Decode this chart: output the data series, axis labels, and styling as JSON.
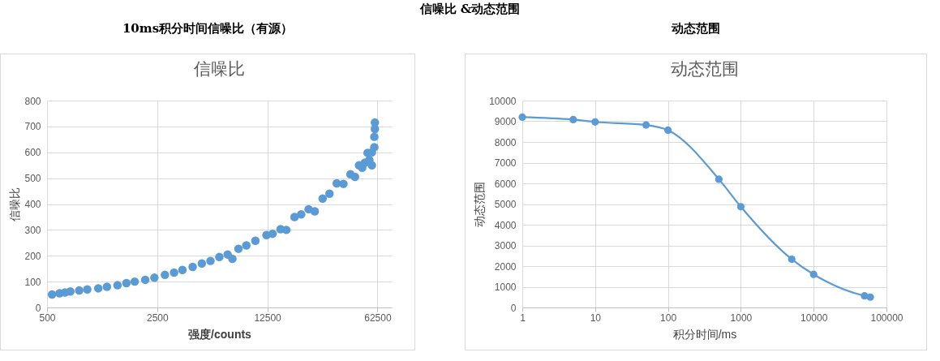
{
  "chart_data": [
    {
      "type": "scatter",
      "title": "10ms积分时间信噪比（有源）",
      "subtitle": "信噪比",
      "annotations": [
        "信噪比 &动态范围"
      ],
      "xlabel": "强度/counts",
      "ylabel": "信噪比",
      "x": [
        538,
        600,
        650,
        703,
        800,
        900,
        1057,
        1200,
        1400,
        1594,
        1800,
        2100,
        2400,
        2800,
        3200,
        3615,
        4200,
        4800,
        5447,
        6200,
        7000,
        7500,
        8200,
        9200,
        10500,
        12350,
        13500,
        15170,
        16500,
        18600,
        20500,
        22850,
        25000,
        28060,
        31000,
        34460,
        38000,
        42100,
        45000,
        47750,
        50000,
        52000,
        54100,
        55500,
        57600,
        57600,
        59700,
        59700,
        60200,
        60200
      ],
      "series": [
        {
          "color": "#5b9bd5",
          "values": [
            50,
            55,
            58,
            62,
            66,
            70,
            74,
            80,
            86,
            94,
            100,
            107,
            115,
            126,
            135,
            145,
            157,
            170,
            180,
            195,
            205,
            188,
            227,
            240,
            258,
            280,
            285,
            303,
            300,
            350,
            360,
            380,
            372,
            421,
            440,
            480,
            478,
            515,
            505,
            550,
            540,
            560,
            598,
            570,
            550,
            600,
            620,
            660,
            715,
            690
          ]
        }
      ],
      "xlim": [
        500,
        77000
      ],
      "xticks": [
        500,
        2500,
        12500,
        62500
      ],
      "ylim": [
        0,
        800
      ],
      "yticks": [
        0,
        100,
        200,
        300,
        400,
        500,
        600,
        700,
        800
      ],
      "log": "x",
      "grid": true,
      "marker": "circle"
    },
    {
      "type": "line",
      "title": "动态范围",
      "subtitle": "动态范围",
      "xlabel": "积分时间/ms",
      "ylabel": "动态范围",
      "x": [
        1,
        5,
        10,
        50,
        100,
        500,
        1000,
        5000,
        10000,
        50000,
        60000
      ],
      "series": [
        {
          "color": "#5b9bd5",
          "values": [
            9200,
            9080,
            8970,
            8820,
            8570,
            6200,
            4870,
            2330,
            1600,
            560,
            500
          ]
        }
      ],
      "xlim": [
        1,
        100000
      ],
      "xticks": [
        1,
        10,
        100,
        1000,
        10000,
        100000
      ],
      "ylim": [
        0,
        10000
      ],
      "yticks": [
        0,
        1000,
        2000,
        3000,
        4000,
        5000,
        6000,
        7000,
        8000,
        9000,
        10000
      ],
      "log": "x",
      "grid": true,
      "marker": "circle"
    }
  ]
}
